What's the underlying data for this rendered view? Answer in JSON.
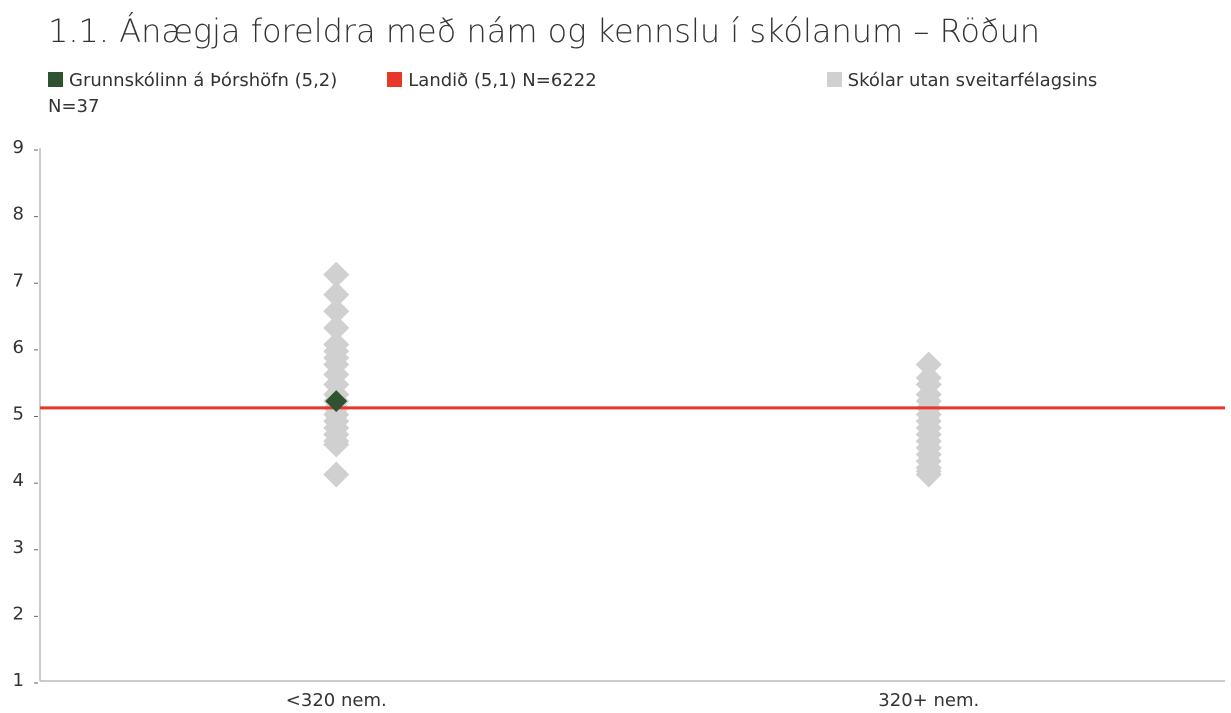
{
  "chart_data": {
    "type": "strip",
    "title": "1.1. Ánægja foreldra með nám og kennslu í skólanum – Röðun",
    "categories": [
      "<320 nem.",
      "320+ nem."
    ],
    "ylim": [
      1,
      9
    ],
    "yticks": [
      1,
      2,
      3,
      4,
      5,
      6,
      7,
      8,
      9
    ],
    "series": [
      {
        "name": "Grunnskólinn á Þórshöfn (5,2)",
        "color": "#2f5230",
        "kind": "point",
        "values": [
          5.2,
          null
        ]
      },
      {
        "name": "Landið (5,1) N=6222",
        "color": "#e8362a",
        "kind": "hline",
        "value": 5.1
      },
      {
        "name": "Skólar utan sveitarfélagsins N=37",
        "color": "#d0d0d0",
        "kind": "points",
        "values": [
          [
            7.1,
            6.8,
            6.55,
            6.3,
            6.05,
            5.95,
            5.85,
            5.75,
            5.6,
            5.45,
            5.3,
            5.1,
            5.0,
            4.9,
            4.8,
            4.7,
            4.6,
            4.55,
            4.1,
            5.2
          ],
          [
            5.75,
            5.55,
            5.45,
            5.3,
            5.2,
            5.1,
            5.0,
            4.9,
            4.8,
            4.7,
            4.6,
            4.5,
            4.4,
            4.3,
            4.2,
            4.15,
            4.1
          ]
        ]
      }
    ]
  }
}
